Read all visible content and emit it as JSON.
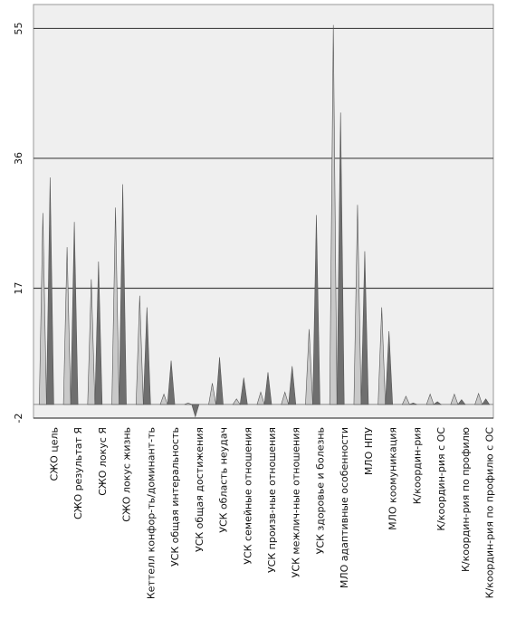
{
  "chart_data": {
    "type": "spike",
    "categories": [
      "СЖО цель",
      "СЖО результат Я",
      "СЖО локус Я",
      "СЖО локус жизнь",
      "Кеттелл конфор-ть/доминант-ть",
      "УСК общая интеральность",
      "УСК общая достижения",
      "УСК область неудач",
      "УСК семейные отношения",
      "УСК произв-ные отношения",
      "УСК межлич-ные отношения",
      "УСК здоровье и болезнь",
      "МЛО адаптивные особенности",
      "МЛО НПУ",
      "МЛО коомуникация",
      "К/координ-рия",
      "К/координ-рия с ОС",
      "К/координ-рия по профилю",
      "К/координ-рия по профилю с ОС"
    ],
    "series": [
      {
        "color": "#c9c9c9",
        "values": [
          28,
          23,
          18.3,
          28.8,
          15.9,
          1.5,
          0.2,
          3.1,
          0.8,
          1.8,
          1.8,
          11,
          55.5,
          29.2,
          14.2,
          1.2,
          1.5,
          1.5,
          1.6
        ]
      },
      {
        "color": "#6f6f6f",
        "values": [
          33.2,
          26.7,
          20.9,
          32.2,
          14.2,
          6.4,
          -1.8,
          6.9,
          3.9,
          4.7,
          5.6,
          27.7,
          42.7,
          22.4,
          10.7,
          0.2,
          0.4,
          0.7,
          0.8
        ]
      }
    ],
    "ylim": [
      -2,
      58.5
    ],
    "yticks": [
      -2,
      17,
      36,
      55
    ],
    "grid": true
  }
}
